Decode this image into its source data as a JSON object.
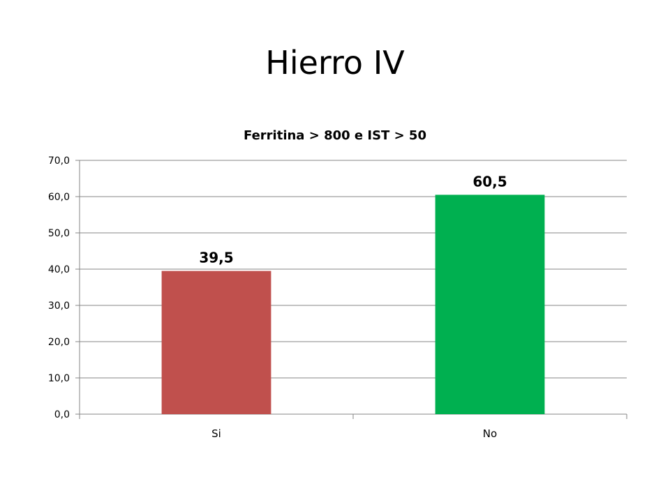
{
  "slide": {
    "title": "Hierro IV"
  },
  "chart_data": {
    "type": "bar",
    "title": "Ferritina > 800 e IST > 50",
    "categories": [
      "Si",
      "No"
    ],
    "values": [
      39.5,
      60.5
    ],
    "value_labels": [
      "39,5",
      "60,5"
    ],
    "bar_colors": [
      "#C0504D",
      "#00B050"
    ],
    "ylim": [
      0,
      70
    ],
    "yticks": [
      0,
      10,
      20,
      30,
      40,
      50,
      60,
      70
    ],
    "ytick_labels": [
      "0,0",
      "10,0",
      "20,0",
      "30,0",
      "40,0",
      "50,0",
      "60,0",
      "70,0"
    ],
    "grid": true,
    "legend": "none",
    "xlabel": "",
    "ylabel": ""
  }
}
